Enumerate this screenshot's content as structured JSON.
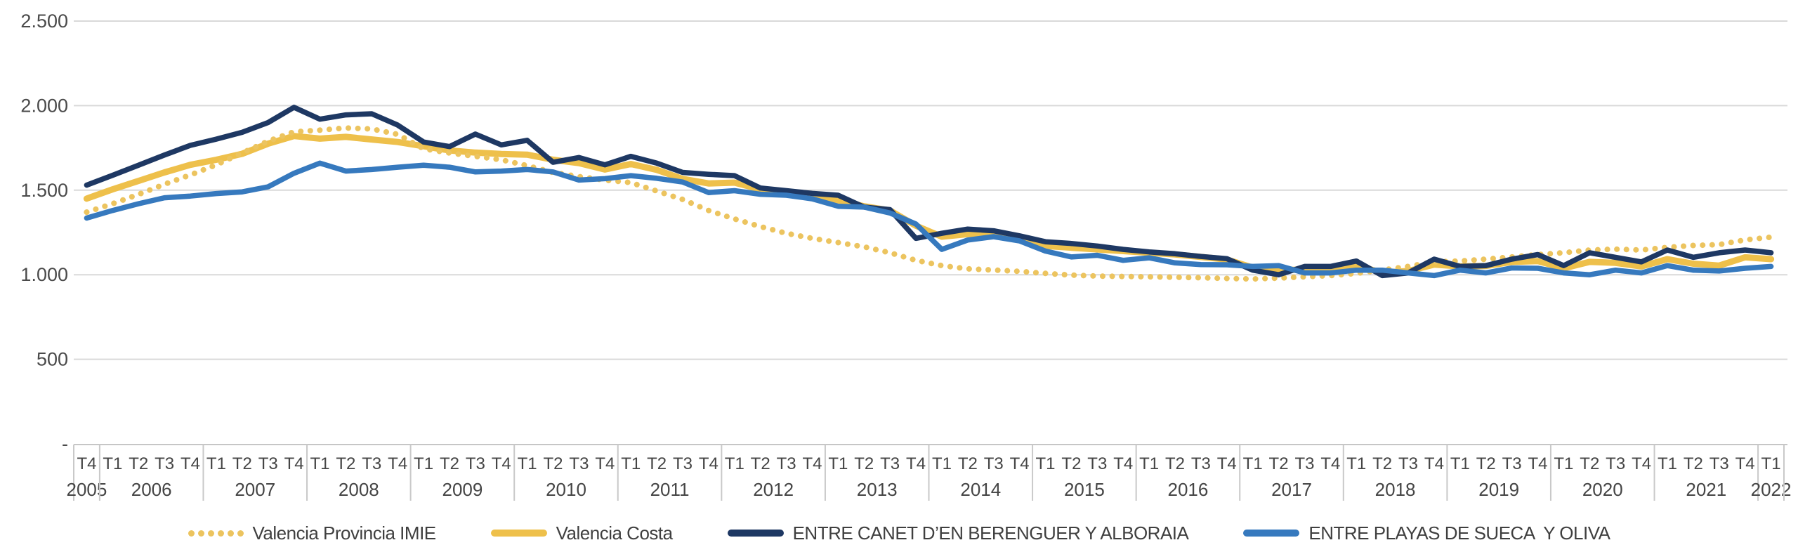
{
  "chart_data": {
    "type": "line",
    "title": "",
    "xlabel": "",
    "ylabel": "",
    "grid": true,
    "legend_position": "bottom",
    "y_axis": {
      "min": 0,
      "max": 2500,
      "ticks": [
        {
          "value": 2500,
          "label": "2.500"
        },
        {
          "value": 2000,
          "label": "2.000"
        },
        {
          "value": 1500,
          "label": "1.500"
        },
        {
          "value": 1000,
          "label": "1.000"
        },
        {
          "value": 500,
          "label": "500"
        },
        {
          "value": 0,
          "label": "-"
        }
      ]
    },
    "x_axis": {
      "years": [
        {
          "label": "2005",
          "quarters": [
            "T4"
          ]
        },
        {
          "label": "2006",
          "quarters": [
            "T1",
            "T2",
            "T3",
            "T4"
          ]
        },
        {
          "label": "2007",
          "quarters": [
            "T1",
            "T2",
            "T3",
            "T4"
          ]
        },
        {
          "label": "2008",
          "quarters": [
            "T1",
            "T2",
            "T3",
            "T4"
          ]
        },
        {
          "label": "2009",
          "quarters": [
            "T1",
            "T2",
            "T3",
            "T4"
          ]
        },
        {
          "label": "2010",
          "quarters": [
            "T1",
            "T2",
            "T3",
            "T4"
          ]
        },
        {
          "label": "2011",
          "quarters": [
            "T1",
            "T2",
            "T3",
            "T4"
          ]
        },
        {
          "label": "2012",
          "quarters": [
            "T1",
            "T2",
            "T3",
            "T4"
          ]
        },
        {
          "label": "2013",
          "quarters": [
            "T1",
            "T2",
            "T3",
            "T4"
          ]
        },
        {
          "label": "2014",
          "quarters": [
            "T1",
            "T2",
            "T3",
            "T4"
          ]
        },
        {
          "label": "2015",
          "quarters": [
            "T1",
            "T2",
            "T3",
            "T4"
          ]
        },
        {
          "label": "2016",
          "quarters": [
            "T1",
            "T2",
            "T3",
            "T4"
          ]
        },
        {
          "label": "2017",
          "quarters": [
            "T1",
            "T2",
            "T3",
            "T4"
          ]
        },
        {
          "label": "2018",
          "quarters": [
            "T1",
            "T2",
            "T3",
            "T4"
          ]
        },
        {
          "label": "2019",
          "quarters": [
            "T1",
            "T2",
            "T3",
            "T4"
          ]
        },
        {
          "label": "2020",
          "quarters": [
            "T1",
            "T2",
            "T3",
            "T4"
          ]
        },
        {
          "label": "2021",
          "quarters": [
            "T1",
            "T2",
            "T3",
            "T4"
          ]
        },
        {
          "label": "2022",
          "quarters": [
            "T1"
          ]
        }
      ]
    },
    "series": [
      {
        "name": "Valencia Costa",
        "color": "#eec04b",
        "style": "solid",
        "values": [
          1450,
          1505,
          1555,
          1605,
          1650,
          1680,
          1715,
          1775,
          1820,
          1805,
          1815,
          1800,
          1785,
          1760,
          1735,
          1722,
          1714,
          1710,
          1680,
          1660,
          1622,
          1655,
          1620,
          1567,
          1540,
          1545,
          1505,
          1485,
          1465,
          1440,
          1405,
          1380,
          1290,
          1225,
          1240,
          1245,
          1215,
          1170,
          1160,
          1150,
          1140,
          1130,
          1120,
          1105,
          1090,
          1042,
          1028,
          1030,
          1032,
          1055,
          1012,
          1022,
          1060,
          1050,
          1052,
          1076,
          1081,
          1038,
          1076,
          1070,
          1049,
          1092,
          1065,
          1054,
          1103,
          1092
        ]
      },
      {
        "name": "Valencia Provincia IMIE",
        "color": "#ecc45f",
        "style": "dotted",
        "values": [
          1370,
          1420,
          1475,
          1535,
          1590,
          1650,
          1720,
          1790,
          1845,
          1855,
          1868,
          1862,
          1830,
          1745,
          1720,
          1700,
          1680,
          1645,
          1605,
          1580,
          1560,
          1545,
          1495,
          1445,
          1380,
          1330,
          1285,
          1245,
          1215,
          1190,
          1165,
          1130,
          1085,
          1054,
          1035,
          1028,
          1020,
          1008,
          998,
          992,
          990,
          988,
          985,
          982,
          978,
          975,
          980,
          988,
          995,
          1008,
          1028,
          1049,
          1076,
          1081,
          1092,
          1105,
          1119,
          1130,
          1146,
          1151,
          1146,
          1162,
          1173,
          1178,
          1206,
          1222
        ]
      },
      {
        "name": "ENTRE CANET D’EN BERENGUER Y ALBORAIA",
        "color": "#1e3863",
        "style": "solid",
        "values": [
          1530,
          1588,
          1648,
          1708,
          1765,
          1802,
          1842,
          1900,
          1990,
          1920,
          1945,
          1952,
          1885,
          1785,
          1758,
          1832,
          1768,
          1795,
          1665,
          1693,
          1650,
          1700,
          1660,
          1605,
          1594,
          1586,
          1513,
          1497,
          1481,
          1470,
          1400,
          1385,
          1215,
          1245,
          1270,
          1260,
          1230,
          1195,
          1185,
          1170,
          1150,
          1135,
          1124,
          1108,
          1095,
          1027,
          1000,
          1049,
          1049,
          1081,
          995,
          1011,
          1092,
          1049,
          1054,
          1092,
          1119,
          1054,
          1130,
          1103,
          1076,
          1146,
          1103,
          1130,
          1146,
          1130
        ]
      },
      {
        "name": "ENTRE PLAYAS DE SUECA  Y OLIVA",
        "color": "#3679be",
        "style": "solid",
        "values": [
          1335,
          1380,
          1420,
          1455,
          1465,
          1480,
          1490,
          1520,
          1600,
          1660,
          1613,
          1622,
          1636,
          1648,
          1636,
          1608,
          1613,
          1622,
          1608,
          1560,
          1568,
          1586,
          1570,
          1548,
          1486,
          1497,
          1476,
          1470,
          1449,
          1405,
          1400,
          1365,
          1300,
          1150,
          1205,
          1225,
          1200,
          1140,
          1105,
          1115,
          1085,
          1100,
          1070,
          1060,
          1059,
          1049,
          1054,
          1011,
          1011,
          1027,
          1027,
          1011,
          995,
          1027,
          1011,
          1040,
          1038,
          1011,
          1000,
          1027,
          1011,
          1054,
          1027,
          1022,
          1038,
          1049
        ]
      }
    ],
    "legend_order": [
      "Valencia Provincia IMIE",
      "Valencia Costa",
      "ENTRE CANET D’EN BERENGUER Y ALBORAIA",
      "ENTRE PLAYAS DE SUECA  Y OLIVA"
    ],
    "colors": {
      "grid": "#d9d9d9",
      "axis_band_line": "#c6c6c6",
      "year_separator": "#c9c9c9",
      "tick_text": "#4a4a4a",
      "legend_text": "#3f3f3f"
    }
  }
}
